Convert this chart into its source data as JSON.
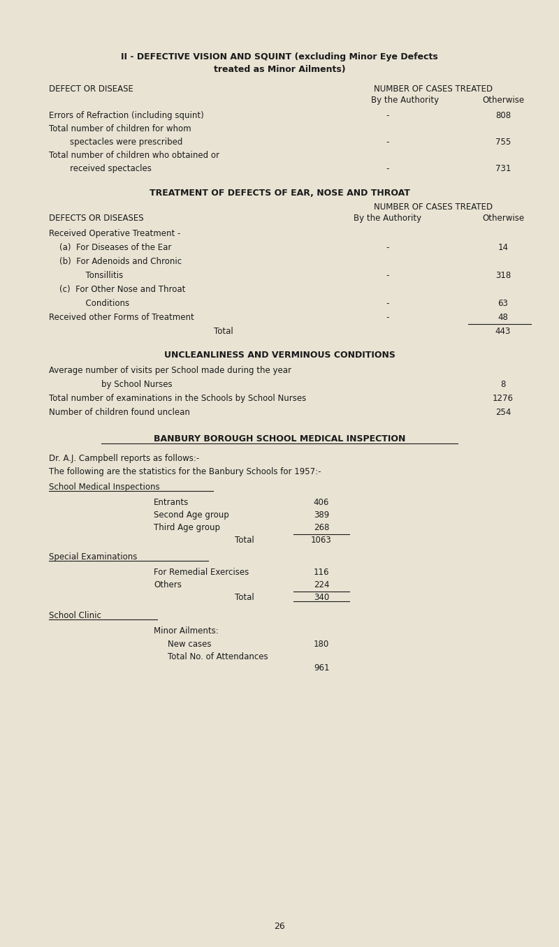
{
  "bg_color": "#e8e3d3",
  "text_color": "#1a1a1a",
  "font_family": "Courier New",
  "page_number": "26",
  "title1": "II - DEFECTIVE VISION AND SQUINT (excluding Minor Eye Defects",
  "title2": "treated as Minor Ailments)",
  "section1_header_left": "DEFECT OR DISEASE",
  "section1_header_right1": "NUMBER OF CASES TREATED",
  "section1_header_right2": "By the Authority",
  "section1_header_right3": "Otherwise",
  "rows_section1": [
    {
      "label": "Errors of Refraction (including squint)",
      "authority": "-",
      "otherwise": "808"
    },
    {
      "label": "Total number of children for whom",
      "authority": "",
      "otherwise": ""
    },
    {
      "label": "        spectacles were prescribed",
      "authority": "-",
      "otherwise": "755"
    },
    {
      "label": "Total number of children who obtained or",
      "authority": "",
      "otherwise": ""
    },
    {
      "label": "        received spectacles",
      "authority": "-",
      "otherwise": "731"
    }
  ],
  "section2_title": "TREATMENT OF DEFECTS OF EAR, NOSE AND THROAT",
  "section2_header_left": "DEFECTS OR DISEASES",
  "section2_header_right1": "NUMBER OF CASES TREATED",
  "section2_header_right2": "By the Authority",
  "section2_header_right3": "Otherwise",
  "rows_section2": [
    {
      "label": "Received Operative Treatment -",
      "authority": "",
      "otherwise": ""
    },
    {
      "label": "    (a)  For Diseases of the Ear",
      "authority": "-",
      "otherwise": "14"
    },
    {
      "label": "    (b)  For Adenoids and Chronic",
      "authority": "",
      "otherwise": ""
    },
    {
      "label": "              Tonsillitis",
      "authority": "-",
      "otherwise": "318"
    },
    {
      "label": "    (c)  For Other Nose and Throat",
      "authority": "",
      "otherwise": ""
    },
    {
      "label": "              Conditions",
      "authority": "-",
      "otherwise": "63"
    },
    {
      "label": "Received other Forms of Treatment",
      "authority": "-",
      "otherwise": "48"
    },
    {
      "total": true,
      "label_center": "Total",
      "otherwise": "443"
    }
  ],
  "section3_title": "UNCLEANLINESS AND VERMINOUS CONDITIONS",
  "section3_rows": [
    {
      "label": "Average number of visits per School made during the year",
      "value": ""
    },
    {
      "label": "                    by School Nurses",
      "value": "8"
    },
    {
      "label": "Total number of examinations in the Schools by School Nurses",
      "value": "1276"
    },
    {
      "label": "Number of children found unclean",
      "value": "254"
    }
  ],
  "section4_title": "BANBURY BOROUGH SCHOOL MEDICAL INSPECTION",
  "section4_intro1": "Dr. A.J. Campbell reports as follows:-",
  "section4_intro2": "The following are the statistics for the Banbury Schools for 1957:-",
  "section4_sub1": "School Medical Inspections",
  "smi_rows": [
    {
      "label": "Entrants",
      "value": "406"
    },
    {
      "label": "Second Age group",
      "value": "389"
    },
    {
      "label": "Third Age group",
      "value": "268"
    }
  ],
  "smi_total_label": "Total",
  "smi_total_value": "1063",
  "section4_sub2": "Special Examinations",
  "se_rows": [
    {
      "label": "For Remedial Exercises",
      "value": "116"
    },
    {
      "label": "Others",
      "value": "224"
    }
  ],
  "se_total_label": "Total",
  "se_total_value": "340",
  "section4_sub3": "School Clinic",
  "sc_minor": "Minor Ailments:",
  "sc_new_cases_label": "New cases",
  "sc_new_cases_value": "180",
  "sc_attend_label": "Total No. of Attendances",
  "sc_attend_value": "961"
}
